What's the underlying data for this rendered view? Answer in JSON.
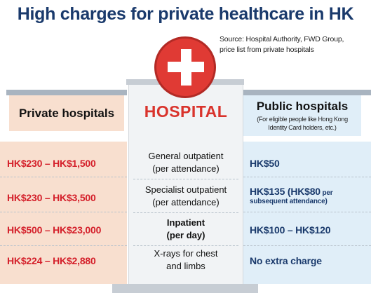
{
  "title": "High charges for private healthcare in HK",
  "source": {
    "line1": "Source: Hospital Authority, FWD Group,",
    "line2": "price list from  private hospitals"
  },
  "hospital_label": "HOSPITAL",
  "colors": {
    "title": "#1a3a6c",
    "private_value": "#d41f2a",
    "public_value": "#1a3a6c",
    "cross": "#e03a34",
    "private_bg": "#f8dfcf",
    "public_bg": "#e0eef8"
  },
  "icons": {
    "cross": "medical-cross-icon"
  },
  "private": {
    "header": "Private hospitals"
  },
  "public": {
    "header": "Public hospitals",
    "subheader_line1": "(For eligible people like Hong Kong",
    "subheader_line2": "Identity Card holders, etc.)"
  },
  "rows": [
    {
      "private": "HK$230 – HK$1,500",
      "service_line1": "General outpatient",
      "service_line2": "(per attendance)",
      "public": "HK$50",
      "public_small": "",
      "public_note": ""
    },
    {
      "private": "HK$230 – HK$3,500",
      "service_line1": "Specialist outpatient",
      "service_line2": "(per attendance)",
      "public": "HK$135 (HK$80",
      "public_small": " per",
      "public_note": "subsequent attendance)"
    },
    {
      "private": "HK$500 – HK$23,000",
      "service_line1": "Inpatient",
      "service_line2": "(per day)",
      "public": "HK$100 – HK$120",
      "public_small": "",
      "public_note": ""
    },
    {
      "private": "HK$224 – HK$2,880",
      "service_line1": "X-rays for chest",
      "service_line2": "and limbs",
      "public": "No extra charge",
      "public_small": "",
      "public_note": ""
    }
  ]
}
